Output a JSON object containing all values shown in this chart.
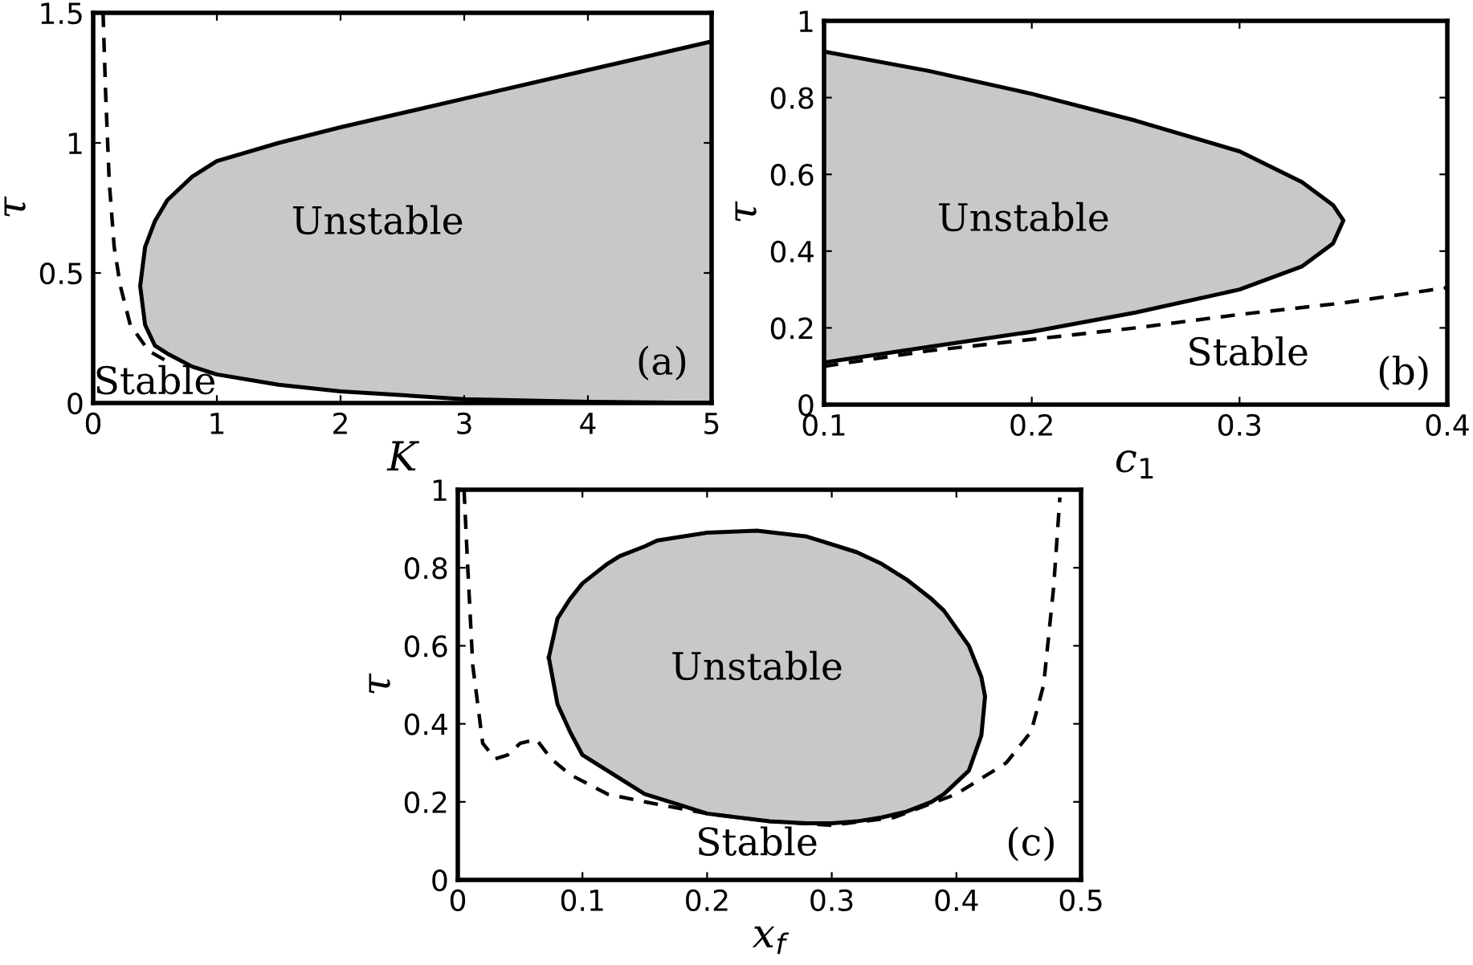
{
  "chart_data": [
    {
      "type": "area",
      "xlabel": "K",
      "ylabel": "τ",
      "xlim": [
        0,
        5
      ],
      "ylim": [
        0,
        1.5
      ],
      "xticks": [
        0,
        1,
        2,
        3,
        4,
        5
      ],
      "yticks": [
        0,
        0.5,
        1,
        1.5
      ],
      "grid": false,
      "legend": false,
      "series": [
        {
          "type": "area",
          "color": "#c8c8c8",
          "x": [
            5,
            4,
            3,
            2,
            1.5,
            1.0,
            0.8,
            0.6,
            0.5,
            0.42,
            0.38,
            0.42,
            0.5,
            0.6,
            0.8,
            1.0,
            1.5,
            2,
            3,
            4,
            5
          ],
          "values": [
            1.39,
            1.28,
            1.17,
            1.06,
            1.0,
            0.93,
            0.87,
            0.78,
            0.7,
            0.6,
            0.45,
            0.3,
            0.22,
            0.19,
            0.14,
            0.11,
            0.07,
            0.045,
            0.015,
            0.005,
            0
          ]
        },
        {
          "type": "line",
          "line_style": "dashed",
          "color": "#000000",
          "x": [
            0.08,
            0.1,
            0.13,
            0.17,
            0.22,
            0.3,
            0.45,
            0.6
          ],
          "values": [
            1.5,
            1.2,
            0.85,
            0.6,
            0.45,
            0.3,
            0.2,
            0.16
          ]
        }
      ],
      "annotations": [
        "Unstable",
        "Stable",
        "(a)"
      ]
    },
    {
      "type": "area",
      "xlabel": "c$_{1}$",
      "ylabel": "τ",
      "xlim": [
        0.1,
        0.4
      ],
      "ylim": [
        0,
        1
      ],
      "xticks": [
        0.1,
        0.2,
        0.3,
        0.4
      ],
      "yticks": [
        0,
        0.2,
        0.4,
        0.6,
        0.8,
        1
      ],
      "grid": false,
      "legend": false,
      "series": [
        {
          "type": "area",
          "color": "#c8c8c8",
          "x": [
            0.1,
            0.15,
            0.2,
            0.25,
            0.3,
            0.33,
            0.345,
            0.35,
            0.345,
            0.33,
            0.3,
            0.25,
            0.2,
            0.15,
            0.1
          ],
          "values": [
            0.92,
            0.87,
            0.81,
            0.74,
            0.66,
            0.58,
            0.52,
            0.48,
            0.42,
            0.36,
            0.3,
            0.24,
            0.19,
            0.15,
            0.11
          ]
        },
        {
          "type": "line",
          "line_style": "dashed",
          "color": "#000000",
          "x": [
            0.1,
            0.15,
            0.2,
            0.25,
            0.3,
            0.35,
            0.4
          ],
          "values": [
            0.1,
            0.14,
            0.17,
            0.2,
            0.235,
            0.265,
            0.305
          ]
        }
      ],
      "annotations": [
        "Unstable",
        "Stable",
        "(b)"
      ]
    },
    {
      "type": "area",
      "xlabel": "x$_{f}$",
      "ylabel": "τ",
      "xlim": [
        0,
        0.5
      ],
      "ylim": [
        0,
        1
      ],
      "xticks": [
        0,
        0.1,
        0.2,
        0.3,
        0.4,
        0.5
      ],
      "yticks": [
        0,
        0.2,
        0.4,
        0.6,
        0.8,
        1
      ],
      "grid": false,
      "legend": false,
      "series": [
        {
          "type": "area",
          "color": "#c8c8c8",
          "x": [
            0.073,
            0.08,
            0.09,
            0.1,
            0.12,
            0.13,
            0.15,
            0.16,
            0.2,
            0.24,
            0.28,
            0.32,
            0.34,
            0.36,
            0.38,
            0.39,
            0.41,
            0.42,
            0.423,
            0.42,
            0.41,
            0.39,
            0.38,
            0.36,
            0.34,
            0.32,
            0.3,
            0.28,
            0.25,
            0.2,
            0.16,
            0.15,
            0.12,
            0.1,
            0.09,
            0.08,
            0.073
          ],
          "values": [
            0.57,
            0.67,
            0.72,
            0.76,
            0.81,
            0.83,
            0.855,
            0.87,
            0.89,
            0.895,
            0.88,
            0.84,
            0.81,
            0.77,
            0.72,
            0.69,
            0.6,
            0.52,
            0.47,
            0.37,
            0.28,
            0.22,
            0.2,
            0.175,
            0.16,
            0.15,
            0.145,
            0.145,
            0.15,
            0.17,
            0.21,
            0.22,
            0.28,
            0.32,
            0.38,
            0.45,
            0.57
          ]
        },
        {
          "type": "line",
          "line_style": "dashed",
          "color": "#000000",
          "x": [
            0.005,
            0.008,
            0.012,
            0.02,
            0.03,
            0.04,
            0.05,
            0.063,
            0.075,
            0.09,
            0.12,
            0.15,
            0.2,
            0.25,
            0.3,
            0.35,
            0.4,
            0.44,
            0.46,
            0.47,
            0.478,
            0.483
          ],
          "values": [
            1.0,
            0.8,
            0.55,
            0.35,
            0.31,
            0.32,
            0.35,
            0.36,
            0.31,
            0.27,
            0.22,
            0.2,
            0.17,
            0.15,
            0.14,
            0.16,
            0.22,
            0.3,
            0.38,
            0.5,
            0.75,
            0.98
          ]
        }
      ],
      "annotations": [
        "Unstable",
        "Stable",
        "(c)"
      ]
    }
  ]
}
